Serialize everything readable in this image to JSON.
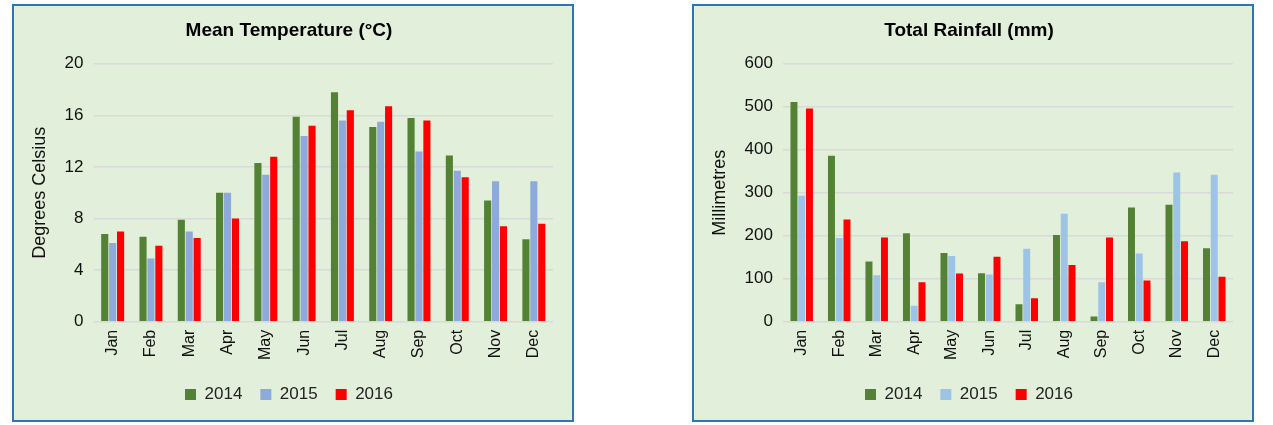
{
  "chart_data": [
    {
      "type": "bar",
      "title": "Mean Temperature (°C)",
      "ylabel": "Degrees Celsius",
      "categories": [
        "Jan",
        "Feb",
        "Mar",
        "Apr",
        "May",
        "Jun",
        "Jul",
        "Aug",
        "Sep",
        "Oct",
        "Nov",
        "Dec"
      ],
      "series": [
        {
          "name": "2014",
          "color": "#548235",
          "values": [
            6.8,
            6.6,
            7.9,
            10.0,
            12.3,
            15.9,
            17.8,
            15.1,
            15.8,
            12.9,
            9.4,
            6.4
          ]
        },
        {
          "name": "2015",
          "color": "#8eaadb",
          "values": [
            6.1,
            4.9,
            7.0,
            10.0,
            11.4,
            14.4,
            15.6,
            15.5,
            13.2,
            11.7,
            10.9,
            10.9
          ]
        },
        {
          "name": "2016",
          "color": "#ff0000",
          "values": [
            7.0,
            5.9,
            6.5,
            8.0,
            12.8,
            15.2,
            16.4,
            16.7,
            15.6,
            11.2,
            7.4,
            7.6
          ]
        }
      ],
      "ylim": [
        0,
        20
      ],
      "yticks": [
        0,
        4,
        8,
        12,
        16,
        20
      ],
      "grid": "y",
      "legend": "bottom"
    },
    {
      "type": "bar",
      "title": "Total Rainfall (mm)",
      "ylabel": "Millimetres",
      "categories": [
        "Jan",
        "Feb",
        "Mar",
        "Apr",
        "May",
        "Jun",
        "Jul",
        "Aug",
        "Sep",
        "Oct",
        "Nov",
        "Dec"
      ],
      "series": [
        {
          "name": "2014",
          "color": "#548235",
          "values": [
            511,
            386,
            140,
            206,
            160,
            113,
            41,
            202,
            12,
            266,
            272,
            171
          ]
        },
        {
          "name": "2015",
          "color": "#9dc3e6",
          "values": [
            293,
            195,
            108,
            37,
            153,
            110,
            170,
            251,
            92,
            159,
            347,
            342
          ]
        },
        {
          "name": "2016",
          "color": "#ff0000",
          "values": [
            496,
            238,
            196,
            92,
            112,
            151,
            55,
            132,
            196,
            96,
            187,
            105
          ]
        }
      ],
      "ylim": [
        0,
        600
      ],
      "yticks": [
        0,
        100,
        200,
        300,
        400,
        500,
        600
      ],
      "grid": "y",
      "legend": "bottom"
    }
  ]
}
